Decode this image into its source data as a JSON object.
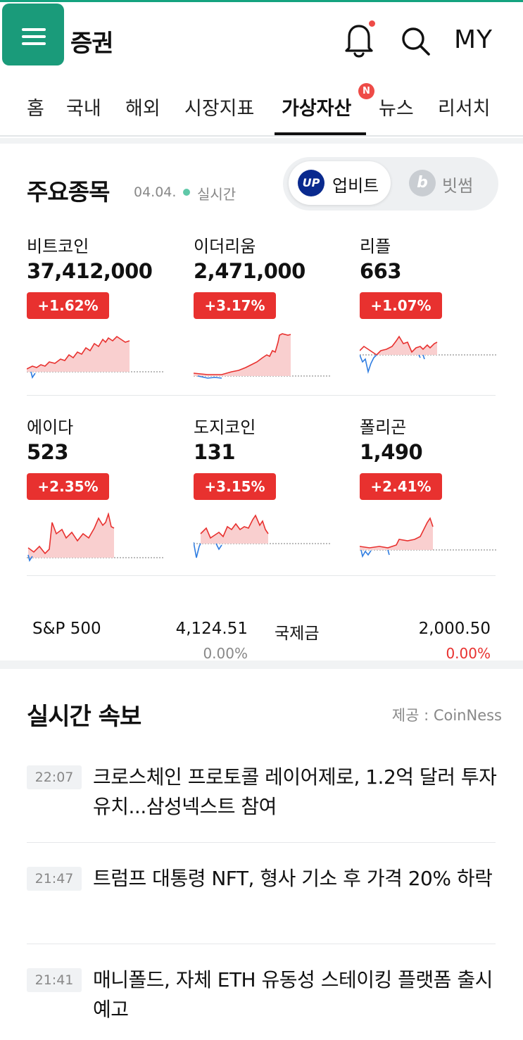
{
  "header": {
    "title": "증권",
    "my_label": "MY",
    "menu_icon": "hamburger-menu-icon",
    "bell_icon": "bell-icon",
    "search_icon": "search-icon",
    "accent_color": "#1a9b7a"
  },
  "tabs": [
    {
      "label": "홈"
    },
    {
      "label": "국내"
    },
    {
      "label": "해외"
    },
    {
      "label": "시장지표"
    },
    {
      "label": "가상자산",
      "active": true,
      "badge": "N"
    },
    {
      "label": "뉴스"
    },
    {
      "label": "리서치"
    }
  ],
  "main_stocks": {
    "title": "주요종목",
    "date": "04.04.",
    "live_label": "실시간",
    "exchanges": [
      {
        "label": "업비트",
        "logo_text": "UP",
        "active": true
      },
      {
        "label": "빗썸",
        "logo_text": "b",
        "active": false
      }
    ],
    "coins": [
      {
        "name": "비트코인",
        "price": "37,412,000",
        "change": "+1.62%"
      },
      {
        "name": "이더리움",
        "price": "2,471,000",
        "change": "+3.17%"
      },
      {
        "name": "리플",
        "price": "663",
        "change": "+1.07%"
      },
      {
        "name": "에이다",
        "price": "523",
        "change": "+2.35%"
      },
      {
        "name": "도지코인",
        "price": "131",
        "change": "+3.15%"
      },
      {
        "name": "폴리곤",
        "price": "1,490",
        "change": "+2.41%"
      }
    ],
    "up_color": "#e8312f",
    "down_color": "#2f7de1"
  },
  "indices": [
    {
      "name": "S&P 500",
      "value": "4,124.51",
      "change": "0.00%",
      "color": "#888888"
    },
    {
      "name": "국제금",
      "value": "2,000.50",
      "change": "0.00%",
      "color": "#e8312f"
    }
  ],
  "news": {
    "title": "실시간 속보",
    "source": "제공 : CoinNess",
    "items": [
      {
        "time": "22:07",
        "text": "크로스체인 프로토콜 레이어제로, 1.2억 달러 투자 유치...삼성넥스트 참여"
      },
      {
        "time": "21:47",
        "text": "트럼프 대통령 NFT, 형사 기소 후 가격 20% 하락"
      },
      {
        "time": "21:41",
        "text": "매니폴드, 자체 ETH 유동성 스테이킹 플랫폼 출시 예고"
      }
    ]
  }
}
